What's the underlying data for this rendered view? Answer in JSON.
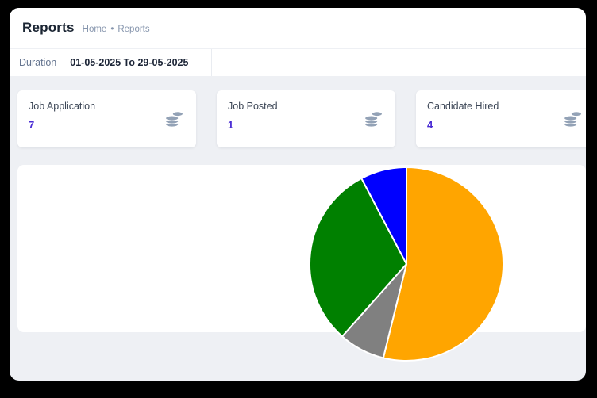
{
  "page": {
    "title": "Reports",
    "breadcrumb": {
      "home": "Home",
      "separator": "•",
      "current": "Reports"
    }
  },
  "filters": {
    "duration_label": "Duration",
    "duration_value": "01-05-2025 To 29-05-2025"
  },
  "stat_cards": [
    {
      "label": "Job Application",
      "value": "7",
      "icon": "coins-stack-icon"
    },
    {
      "label": "Job Posted",
      "value": "1",
      "icon": "coins-stack-icon"
    },
    {
      "label": "Candidate Hired",
      "value": "4",
      "icon": "coins-stack-icon"
    }
  ],
  "colors": {
    "accent_number": "#4a2cd4",
    "title_text": "#1b2533",
    "muted_text": "#8695ad",
    "body_bg": "#eef0f4",
    "icon_gray": "#93a2b6"
  },
  "chart_data": {
    "type": "pie",
    "title": "",
    "legend": "none",
    "labels": "none",
    "start_angle_deg": 0,
    "direction": "clockwise",
    "slices": [
      {
        "value": 7,
        "color": "#FFA500"
      },
      {
        "value": 1,
        "color": "#808080"
      },
      {
        "value": 4,
        "color": "#008000"
      },
      {
        "value": 1,
        "color": "#0000FF"
      }
    ]
  }
}
